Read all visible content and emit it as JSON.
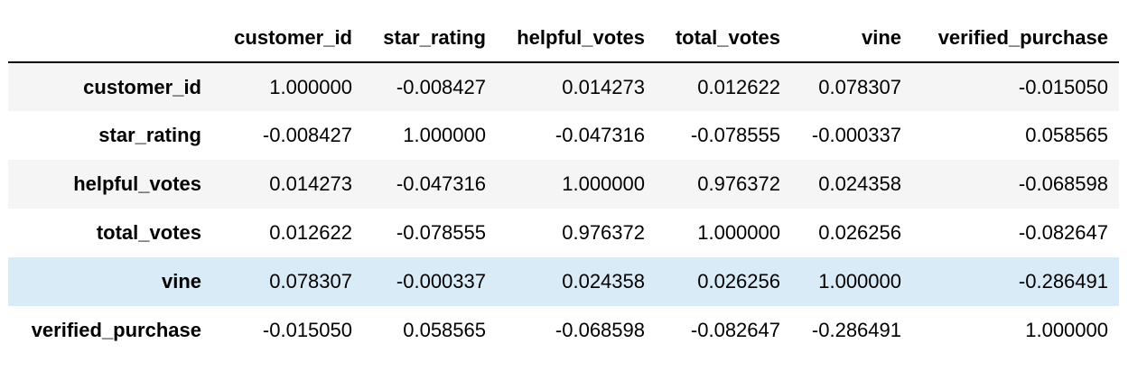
{
  "table": {
    "index_header": "",
    "columns": [
      "customer_id",
      "star_rating",
      "helpful_votes",
      "total_votes",
      "vine",
      "verified_purchase"
    ],
    "hovered_row": 4,
    "highlight_color": "#d8ebf7",
    "stripe_color": "#f5f5f5",
    "rows": [
      {
        "label": "customer_id",
        "values": [
          "1.000000",
          "-0.008427",
          "0.014273",
          "0.012622",
          "0.078307",
          "-0.015050"
        ]
      },
      {
        "label": "star_rating",
        "values": [
          "-0.008427",
          "1.000000",
          "-0.047316",
          "-0.078555",
          "-0.000337",
          "0.058565"
        ]
      },
      {
        "label": "helpful_votes",
        "values": [
          "0.014273",
          "-0.047316",
          "1.000000",
          "0.976372",
          "0.024358",
          "-0.068598"
        ]
      },
      {
        "label": "total_votes",
        "values": [
          "0.012622",
          "-0.078555",
          "0.976372",
          "1.000000",
          "0.026256",
          "-0.082647"
        ]
      },
      {
        "label": "vine",
        "values": [
          "0.078307",
          "-0.000337",
          "0.024358",
          "0.026256",
          "1.000000",
          "-0.286491"
        ]
      },
      {
        "label": "verified_purchase",
        "values": [
          "-0.015050",
          "0.058565",
          "-0.068598",
          "-0.082647",
          "-0.286491",
          "1.000000"
        ]
      }
    ]
  }
}
